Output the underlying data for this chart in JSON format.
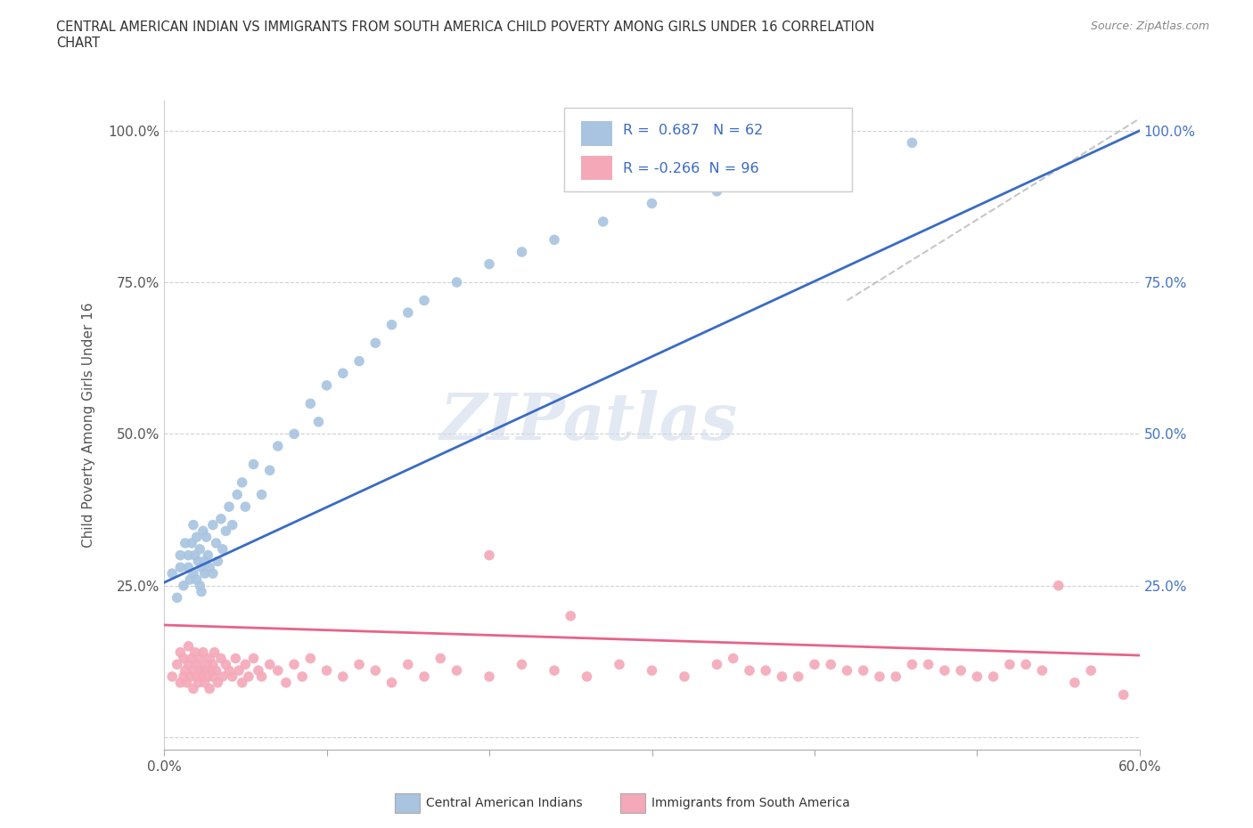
{
  "title": "CENTRAL AMERICAN INDIAN VS IMMIGRANTS FROM SOUTH AMERICA CHILD POVERTY AMONG GIRLS UNDER 16 CORRELATION\nCHART",
  "source_text": "Source: ZipAtlas.com",
  "ylabel": "Child Poverty Among Girls Under 16",
  "xlim": [
    0.0,
    0.6
  ],
  "ylim": [
    -0.02,
    1.05
  ],
  "x_ticks": [
    0.0,
    0.1,
    0.2,
    0.3,
    0.4,
    0.5,
    0.6
  ],
  "x_tick_labels": [
    "0.0%",
    "",
    "",
    "",
    "",
    "",
    "60.0%"
  ],
  "y_ticks": [
    0.0,
    0.25,
    0.5,
    0.75,
    1.0
  ],
  "y_tick_labels": [
    "",
    "25.0%",
    "50.0%",
    "75.0%",
    "100.0%"
  ],
  "blue_R": 0.687,
  "blue_N": 62,
  "pink_R": -0.266,
  "pink_N": 96,
  "blue_color": "#a8c4e0",
  "pink_color": "#f4a8b8",
  "blue_line_color": "#3a6bc4",
  "pink_line_color": "#e8628a",
  "watermark": "ZIPatlas",
  "blue_scatter_x": [
    0.005,
    0.008,
    0.01,
    0.01,
    0.012,
    0.013,
    0.015,
    0.015,
    0.016,
    0.017,
    0.018,
    0.018,
    0.019,
    0.02,
    0.02,
    0.021,
    0.022,
    0.022,
    0.023,
    0.023,
    0.024,
    0.025,
    0.025,
    0.026,
    0.027,
    0.028,
    0.03,
    0.03,
    0.032,
    0.033,
    0.035,
    0.036,
    0.038,
    0.04,
    0.042,
    0.045,
    0.048,
    0.05,
    0.055,
    0.06,
    0.065,
    0.07,
    0.08,
    0.09,
    0.095,
    0.1,
    0.11,
    0.12,
    0.13,
    0.14,
    0.15,
    0.16,
    0.18,
    0.2,
    0.22,
    0.24,
    0.27,
    0.3,
    0.34,
    0.38,
    0.42,
    0.46
  ],
  "blue_scatter_y": [
    0.27,
    0.23,
    0.3,
    0.28,
    0.25,
    0.32,
    0.28,
    0.3,
    0.26,
    0.32,
    0.27,
    0.35,
    0.3,
    0.26,
    0.33,
    0.29,
    0.25,
    0.31,
    0.28,
    0.24,
    0.34,
    0.29,
    0.27,
    0.33,
    0.3,
    0.28,
    0.35,
    0.27,
    0.32,
    0.29,
    0.36,
    0.31,
    0.34,
    0.38,
    0.35,
    0.4,
    0.42,
    0.38,
    0.45,
    0.4,
    0.44,
    0.48,
    0.5,
    0.55,
    0.52,
    0.58,
    0.6,
    0.62,
    0.65,
    0.68,
    0.7,
    0.72,
    0.75,
    0.78,
    0.8,
    0.82,
    0.85,
    0.88,
    0.9,
    0.93,
    0.95,
    0.98
  ],
  "pink_scatter_x": [
    0.005,
    0.008,
    0.01,
    0.01,
    0.012,
    0.012,
    0.013,
    0.014,
    0.015,
    0.015,
    0.016,
    0.017,
    0.018,
    0.018,
    0.019,
    0.02,
    0.02,
    0.021,
    0.022,
    0.022,
    0.023,
    0.024,
    0.025,
    0.025,
    0.026,
    0.027,
    0.028,
    0.028,
    0.029,
    0.03,
    0.03,
    0.031,
    0.032,
    0.033,
    0.035,
    0.036,
    0.038,
    0.04,
    0.042,
    0.044,
    0.046,
    0.048,
    0.05,
    0.052,
    0.055,
    0.058,
    0.06,
    0.065,
    0.07,
    0.075,
    0.08,
    0.085,
    0.09,
    0.1,
    0.11,
    0.12,
    0.13,
    0.14,
    0.15,
    0.16,
    0.17,
    0.18,
    0.2,
    0.22,
    0.24,
    0.26,
    0.28,
    0.3,
    0.32,
    0.34,
    0.36,
    0.38,
    0.4,
    0.42,
    0.44,
    0.46,
    0.48,
    0.5,
    0.52,
    0.54,
    0.56,
    0.35,
    0.37,
    0.39,
    0.41,
    0.43,
    0.45,
    0.47,
    0.49,
    0.51,
    0.53,
    0.55,
    0.57,
    0.59,
    0.2,
    0.25
  ],
  "pink_scatter_y": [
    0.1,
    0.12,
    0.09,
    0.14,
    0.1,
    0.13,
    0.11,
    0.09,
    0.12,
    0.15,
    0.1,
    0.13,
    0.11,
    0.08,
    0.14,
    0.1,
    0.12,
    0.09,
    0.13,
    0.11,
    0.1,
    0.14,
    0.11,
    0.09,
    0.12,
    0.1,
    0.13,
    0.08,
    0.11,
    0.12,
    0.1,
    0.14,
    0.11,
    0.09,
    0.13,
    0.1,
    0.12,
    0.11,
    0.1,
    0.13,
    0.11,
    0.09,
    0.12,
    0.1,
    0.13,
    0.11,
    0.1,
    0.12,
    0.11,
    0.09,
    0.12,
    0.1,
    0.13,
    0.11,
    0.1,
    0.12,
    0.11,
    0.09,
    0.12,
    0.1,
    0.13,
    0.11,
    0.1,
    0.12,
    0.11,
    0.1,
    0.12,
    0.11,
    0.1,
    0.12,
    0.11,
    0.1,
    0.12,
    0.11,
    0.1,
    0.12,
    0.11,
    0.1,
    0.12,
    0.11,
    0.09,
    0.13,
    0.11,
    0.1,
    0.12,
    0.11,
    0.1,
    0.12,
    0.11,
    0.1,
    0.12,
    0.25,
    0.11,
    0.07,
    0.3,
    0.2
  ],
  "blue_line_x0": 0.0,
  "blue_line_y0": 0.255,
  "blue_line_x1": 0.6,
  "blue_line_y1": 1.0,
  "pink_line_x0": 0.0,
  "pink_line_y0": 0.185,
  "pink_line_x1": 0.6,
  "pink_line_y1": 0.135,
  "ref_line_x0": 0.42,
  "ref_line_y0": 0.72,
  "ref_line_x1": 0.6,
  "ref_line_y1": 1.02
}
